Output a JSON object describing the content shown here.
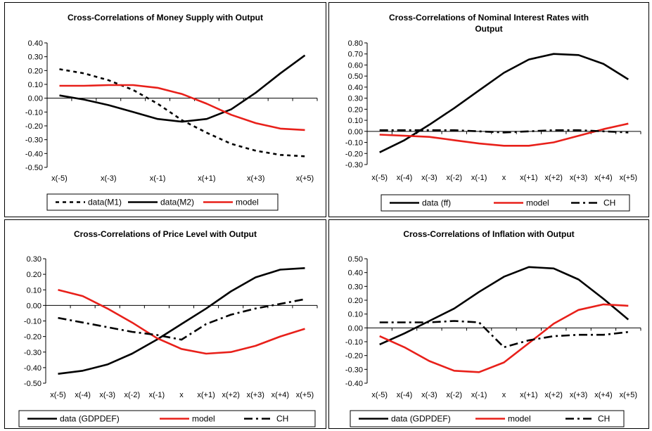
{
  "chart_data": [
    {
      "type": "line",
      "title": [
        "Cross-Correlations of Money Supply with Output"
      ],
      "categories": [
        "x(-5)",
        "x(-4)",
        "x(-3)",
        "x(-2)",
        "x(-1)",
        "x",
        "x(+1)",
        "x(+2)",
        "x(+3)",
        "x(+4)",
        "x(+5)"
      ],
      "tick_labels_shown": [
        "x(-5)",
        "",
        "x(-3)",
        "",
        "x(-1)",
        "",
        "x(+1)",
        "",
        "x(+3)",
        "",
        "x(+5)"
      ],
      "ylim": [
        -0.5,
        0.4
      ],
      "yticks": [
        "0.40",
        "0.30",
        "0.20",
        "0.10",
        "0.00",
        "-0.10",
        "-0.20",
        "-0.30",
        "-0.40",
        "-0.50"
      ],
      "series": [
        {
          "name": "data(M1)",
          "style": "dotted",
          "color": "#000000",
          "values": [
            0.21,
            0.18,
            0.13,
            0.06,
            -0.04,
            -0.16,
            -0.25,
            -0.33,
            -0.38,
            -0.41,
            -0.42
          ]
        },
        {
          "name": "data(M2)",
          "style": "solid",
          "color": "#000000",
          "values": [
            0.02,
            -0.01,
            -0.05,
            -0.1,
            -0.15,
            -0.17,
            -0.15,
            -0.08,
            0.04,
            0.18,
            0.31
          ]
        },
        {
          "name": "model",
          "style": "solid",
          "color": "#e8201a",
          "values": [
            0.09,
            0.09,
            0.095,
            0.095,
            0.075,
            0.03,
            -0.04,
            -0.12,
            -0.18,
            -0.22,
            -0.23
          ]
        }
      ]
    },
    {
      "type": "line",
      "title": [
        "Cross-Correlations of Nominal Interest Rates with",
        "Output"
      ],
      "categories": [
        "x(-5)",
        "x(-4)",
        "x(-3)",
        "x(-2)",
        "x(-1)",
        "x",
        "x(+1)",
        "x(+2)",
        "x(+3)",
        "x(+4)",
        "x(+5)"
      ],
      "tick_labels_shown": [
        "x(-5)",
        "x(-4)",
        "x(-3)",
        "x(-2)",
        "x(-1)",
        "x",
        "x(+1)",
        "x(+2)",
        "x(+3)",
        "x(+4)",
        "x(+5)"
      ],
      "ylim": [
        -0.3,
        0.8
      ],
      "yticks": [
        "0.80",
        "0.70",
        "0.60",
        "0.50",
        "0.40",
        "0.30",
        "0.20",
        "0.10",
        "0.00",
        "-0.10",
        "-0.20",
        "-0.30"
      ],
      "series": [
        {
          "name": "data (ff)",
          "style": "solid",
          "color": "#000000",
          "values": [
            -0.19,
            -0.08,
            0.06,
            0.21,
            0.37,
            0.53,
            0.65,
            0.7,
            0.69,
            0.61,
            0.47
          ]
        },
        {
          "name": "model",
          "style": "solid",
          "color": "#e8201a",
          "values": [
            -0.03,
            -0.04,
            -0.05,
            -0.08,
            -0.11,
            -0.13,
            -0.13,
            -0.1,
            -0.04,
            0.02,
            0.07
          ]
        },
        {
          "name": "CH",
          "style": "dashdot",
          "color": "#000000",
          "values": [
            0.01,
            0.01,
            0.01,
            0.01,
            0.0,
            -0.01,
            0.0,
            0.01,
            0.01,
            0.0,
            -0.01
          ]
        }
      ]
    },
    {
      "type": "line",
      "title": [
        "Cross-Correlations of Price Level with Output"
      ],
      "categories": [
        "x(-5)",
        "x(-4)",
        "x(-3)",
        "x(-2)",
        "x(-1)",
        "x",
        "x(+1)",
        "x(+2)",
        "x(+3)",
        "x(+4)",
        "x(+5)"
      ],
      "tick_labels_shown": [
        "x(-5)",
        "x(-4)",
        "x(-3)",
        "x(-2)",
        "x(-1)",
        "x",
        "x(+1)",
        "x(+2)",
        "x(+3)",
        "x(+4)",
        "x(+5)"
      ],
      "ylim": [
        -0.5,
        0.3
      ],
      "yticks": [
        "0.30",
        "0.20",
        "0.10",
        "0.00",
        "-0.10",
        "-0.20",
        "-0.30",
        "-0.40",
        "-0.50"
      ],
      "series": [
        {
          "name": "data (GDPDEF)",
          "style": "solid",
          "color": "#000000",
          "values": [
            -0.44,
            -0.42,
            -0.38,
            -0.31,
            -0.22,
            -0.12,
            -0.02,
            0.09,
            0.18,
            0.23,
            0.24
          ]
        },
        {
          "name": "model",
          "style": "solid",
          "color": "#e8201a",
          "values": [
            0.1,
            0.06,
            -0.02,
            -0.11,
            -0.21,
            -0.28,
            -0.31,
            -0.3,
            -0.26,
            -0.2,
            -0.15
          ]
        },
        {
          "name": "CH",
          "style": "dashdot",
          "color": "#000000",
          "values": [
            -0.08,
            -0.11,
            -0.14,
            -0.17,
            -0.19,
            -0.22,
            -0.12,
            -0.06,
            -0.02,
            0.01,
            0.04
          ]
        }
      ]
    },
    {
      "type": "line",
      "title": [
        "Cross-Correlations of Inflation with Output"
      ],
      "categories": [
        "x(-5)",
        "x(-4)",
        "x(-3)",
        "x(-2)",
        "x(-1)",
        "x",
        "x(+1)",
        "x(+2)",
        "x(+3)",
        "x(+4)",
        "x(+5)"
      ],
      "tick_labels_shown": [
        "x(-5)",
        "x(-4)",
        "x(-3)",
        "x(-2)",
        "x(-1)",
        "x",
        "x(+1)",
        "x(+2)",
        "x(+3)",
        "x(+4)",
        "x(+5)"
      ],
      "ylim": [
        -0.4,
        0.5
      ],
      "yticks": [
        "0.50",
        "0.40",
        "0.30",
        "0.20",
        "0.10",
        "0.00",
        "-0.10",
        "-0.20",
        "-0.30",
        "-0.40"
      ],
      "series": [
        {
          "name": "data (GDPDEF)",
          "style": "solid",
          "color": "#000000",
          "values": [
            -0.12,
            -0.04,
            0.05,
            0.14,
            0.26,
            0.37,
            0.44,
            0.43,
            0.35,
            0.21,
            0.06
          ]
        },
        {
          "name": "model",
          "style": "solid",
          "color": "#e8201a",
          "values": [
            -0.06,
            -0.14,
            -0.24,
            -0.31,
            -0.32,
            -0.25,
            -0.11,
            0.03,
            0.13,
            0.17,
            0.16
          ]
        },
        {
          "name": "CH",
          "style": "dashdot",
          "color": "#000000",
          "values": [
            0.04,
            0.04,
            0.04,
            0.05,
            0.04,
            -0.14,
            -0.09,
            -0.06,
            -0.05,
            -0.05,
            -0.03
          ]
        }
      ]
    }
  ]
}
